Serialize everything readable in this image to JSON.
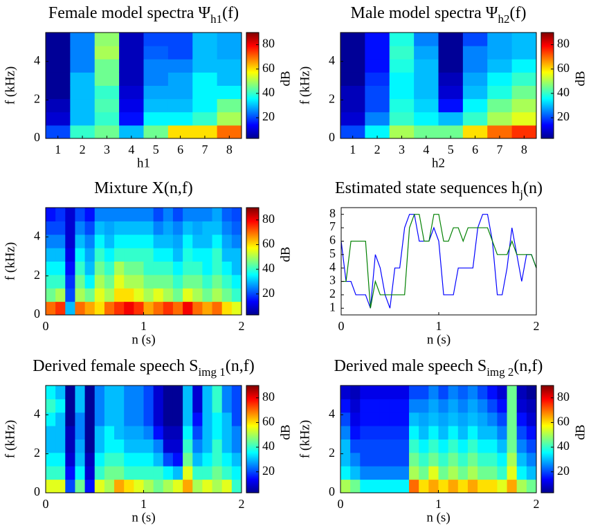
{
  "chart_data": [
    {
      "type": "heatmap",
      "title": [
        "Female model spectra Ψ",
        "h1",
        "(f)"
      ],
      "xlabel": "h1",
      "ylabel": "f (kHz)",
      "xlim": [
        0.5,
        8.5
      ],
      "xticks": [
        1,
        2,
        3,
        4,
        5,
        6,
        7,
        8
      ],
      "ylim": [
        0,
        5.5
      ],
      "yticks": [
        0,
        2,
        4
      ],
      "colorbar": {
        "label": "dB",
        "lim": [
          3,
          90
        ],
        "ticks": [
          20,
          40,
          60,
          80
        ]
      },
      "values": [
        [
          20,
          10,
          8,
          5,
          5,
          5,
          5,
          5
        ],
        [
          40,
          30,
          30,
          30,
          30,
          25,
          25,
          25
        ],
        [
          45,
          40,
          42,
          40,
          45,
          45,
          50,
          48
        ],
        [
          30,
          15,
          12,
          10,
          8,
          8,
          8,
          8
        ],
        [
          45,
          35,
          30,
          28,
          25,
          25,
          22,
          20
        ],
        [
          60,
          35,
          30,
          28,
          28,
          25,
          20,
          20
        ],
        [
          60,
          40,
          35,
          35,
          35,
          30,
          30,
          30
        ],
        [
          70,
          50,
          45,
          35,
          30,
          30,
          28,
          28
        ]
      ]
    },
    {
      "type": "heatmap",
      "title": [
        "Male model spectra Ψ",
        "h2",
        "(f)"
      ],
      "xlabel": "h2",
      "ylabel": "f (kHz)",
      "xlim": [
        0.5,
        8.5
      ],
      "xticks": [
        1,
        2,
        3,
        4,
        5,
        6,
        7,
        8
      ],
      "ylim": [
        0,
        5.5
      ],
      "yticks": [
        0,
        2,
        4
      ],
      "colorbar": {
        "label": "dB",
        "lim": [
          3,
          90
        ],
        "ticks": [
          20,
          40,
          60,
          80
        ]
      },
      "values": [
        [
          20,
          10,
          8,
          8,
          5,
          5,
          5,
          5
        ],
        [
          35,
          25,
          20,
          20,
          18,
          15,
          15,
          15
        ],
        [
          50,
          40,
          38,
          35,
          35,
          38,
          40,
          38
        ],
        [
          45,
          35,
          32,
          30,
          30,
          30,
          28,
          25
        ],
        [
          45,
          30,
          15,
          10,
          8,
          5,
          5,
          5
        ],
        [
          60,
          40,
          35,
          30,
          28,
          25,
          25,
          20
        ],
        [
          70,
          50,
          45,
          38,
          35,
          30,
          28,
          28
        ],
        [
          75,
          55,
          50,
          45,
          40,
          35,
          30,
          30
        ]
      ]
    },
    {
      "type": "heatmap",
      "title": [
        "Mixture X(n,f)",
        "",
        ""
      ],
      "xlabel": "n (s)",
      "ylabel": "f (kHz)",
      "xlim": [
        0,
        2
      ],
      "xticks": [
        0,
        1,
        2
      ],
      "ylim": [
        0,
        5.5
      ],
      "yticks": [
        0,
        2,
        4
      ],
      "colorbar": {
        "label": "dB",
        "lim": [
          3,
          90
        ],
        "ticks": [
          20,
          40,
          60,
          80
        ]
      },
      "values": [
        [
          70,
          45,
          40,
          35,
          30,
          25,
          20,
          15
        ],
        [
          75,
          50,
          40,
          35,
          30,
          25,
          20,
          18
        ],
        [
          30,
          20,
          18,
          15,
          12,
          10,
          10,
          10
        ],
        [
          70,
          50,
          45,
          40,
          35,
          30,
          25,
          20
        ],
        [
          65,
          45,
          35,
          30,
          28,
          25,
          20,
          15
        ],
        [
          60,
          55,
          50,
          45,
          40,
          35,
          30,
          25
        ],
        [
          70,
          50,
          45,
          40,
          35,
          30,
          28,
          25
        ],
        [
          75,
          60,
          55,
          50,
          40,
          35,
          30,
          25
        ],
        [
          80,
          60,
          50,
          45,
          40,
          35,
          30,
          25
        ],
        [
          75,
          55,
          50,
          45,
          40,
          35,
          30,
          25
        ],
        [
          65,
          50,
          45,
          40,
          40,
          35,
          30,
          25
        ],
        [
          70,
          55,
          45,
          40,
          35,
          30,
          25,
          20
        ],
        [
          75,
          50,
          45,
          40,
          35,
          30,
          28,
          25
        ],
        [
          70,
          45,
          40,
          35,
          30,
          28,
          25,
          20
        ],
        [
          80,
          55,
          45,
          40,
          38,
          35,
          30,
          25
        ],
        [
          70,
          50,
          45,
          40,
          35,
          30,
          28,
          25
        ],
        [
          65,
          45,
          40,
          35,
          35,
          30,
          30,
          25
        ],
        [
          70,
          50,
          45,
          40,
          40,
          35,
          30,
          28
        ],
        [
          60,
          45,
          40,
          35,
          30,
          28,
          25,
          22
        ],
        [
          55,
          40,
          35,
          30,
          30,
          25,
          22,
          20
        ]
      ]
    },
    {
      "type": "line",
      "title": [
        "Estimated state sequences h",
        "j",
        "(n)"
      ],
      "xlabel": "n (s)",
      "xlim": [
        0,
        2
      ],
      "xticks": [
        0,
        1,
        2
      ],
      "ylim": [
        0.5,
        8.5
      ],
      "yticks": [
        1,
        2,
        3,
        4,
        5,
        6,
        7,
        8
      ],
      "x": [
        0,
        0.05,
        0.1,
        0.15,
        0.2,
        0.25,
        0.3,
        0.35,
        0.4,
        0.45,
        0.5,
        0.55,
        0.6,
        0.65,
        0.7,
        0.75,
        0.8,
        0.85,
        0.9,
        0.95,
        1,
        1.05,
        1.1,
        1.15,
        1.2,
        1.25,
        1.3,
        1.35,
        1.4,
        1.45,
        1.5,
        1.55,
        1.6,
        1.65,
        1.7,
        1.75,
        1.8,
        1.85,
        1.9,
        1.95,
        2
      ],
      "series": [
        {
          "color": "#0000ff",
          "values": [
            6,
            3,
            3,
            2,
            2,
            2,
            1,
            5,
            4,
            2,
            1,
            4,
            4,
            7,
            8,
            8,
            6,
            6,
            6,
            7,
            6,
            2,
            2,
            2,
            4,
            4,
            4,
            4,
            7,
            8,
            8,
            6,
            2,
            2,
            4,
            7,
            5,
            3,
            5,
            5,
            4
          ]
        },
        {
          "color": "#008000",
          "values": [
            3,
            3,
            6,
            6,
            6,
            6,
            1,
            3,
            2,
            2,
            2,
            2,
            2,
            2,
            7,
            8,
            8,
            6,
            6,
            8,
            8,
            6,
            6,
            7,
            7,
            6,
            7,
            7,
            7,
            7,
            7,
            6,
            5,
            5,
            5,
            6,
            5,
            5,
            5,
            5,
            4
          ]
        }
      ]
    },
    {
      "type": "heatmap",
      "title": [
        "Derived female speech S",
        "img 1",
        "(n,f)"
      ],
      "xlabel": "n (s)",
      "ylabel": "f (kHz)",
      "xlim": [
        0,
        2
      ],
      "xticks": [
        0,
        1,
        2
      ],
      "ylim": [
        0,
        5.5
      ],
      "yticks": [
        0,
        2,
        4
      ],
      "colorbar": {
        "label": "dB",
        "lim": [
          3,
          90
        ],
        "ticks": [
          20,
          40,
          60,
          80
        ]
      },
      "values": [
        [
          55,
          40,
          35,
          30,
          30,
          35,
          40,
          35
        ],
        [
          55,
          40,
          35,
          30,
          30,
          30,
          35,
          30
        ],
        [
          20,
          15,
          10,
          8,
          8,
          5,
          5,
          5
        ],
        [
          45,
          35,
          30,
          28,
          25,
          25,
          30,
          30
        ],
        [
          15,
          10,
          8,
          5,
          5,
          5,
          5,
          5
        ],
        [
          55,
          40,
          35,
          30,
          30,
          25,
          25,
          25
        ],
        [
          50,
          45,
          40,
          35,
          35,
          30,
          30,
          30
        ],
        [
          65,
          45,
          40,
          35,
          30,
          30,
          30,
          30
        ],
        [
          60,
          40,
          35,
          30,
          28,
          25,
          25,
          25
        ],
        [
          55,
          40,
          35,
          30,
          28,
          25,
          25,
          25
        ],
        [
          50,
          40,
          35,
          30,
          25,
          20,
          20,
          20
        ],
        [
          45,
          40,
          30,
          25,
          15,
          10,
          10,
          10
        ],
        [
          50,
          35,
          20,
          10,
          8,
          5,
          5,
          5
        ],
        [
          55,
          30,
          15,
          10,
          8,
          5,
          5,
          5
        ],
        [
          65,
          55,
          45,
          40,
          35,
          30,
          30,
          30
        ],
        [
          50,
          40,
          30,
          25,
          20,
          15,
          10,
          10
        ],
        [
          55,
          40,
          35,
          30,
          30,
          30,
          30,
          30
        ],
        [
          50,
          45,
          40,
          40,
          35,
          35,
          40,
          40
        ],
        [
          55,
          40,
          35,
          30,
          30,
          30,
          25,
          25
        ],
        [
          40,
          35,
          30,
          25,
          25,
          20,
          20,
          20
        ]
      ]
    },
    {
      "type": "heatmap",
      "title": [
        "Derived male speech S",
        "img 2",
        "(n,f)"
      ],
      "xlabel": "n (s)",
      "ylabel": "f (kHz)",
      "xlim": [
        0,
        2
      ],
      "xticks": [
        0,
        1,
        2
      ],
      "ylim": [
        0,
        5.5
      ],
      "yticks": [
        0,
        2,
        4
      ],
      "colorbar": {
        "label": "dB",
        "lim": [
          3,
          90
        ],
        "ticks": [
          20,
          40,
          60,
          80
        ]
      },
      "values": [
        [
          50,
          35,
          30,
          30,
          25,
          20,
          15,
          10
        ],
        [
          45,
          30,
          25,
          20,
          15,
          12,
          10,
          8
        ],
        [
          35,
          25,
          20,
          20,
          18,
          15,
          15,
          12
        ],
        [
          35,
          25,
          20,
          20,
          18,
          15,
          15,
          12
        ],
        [
          35,
          25,
          20,
          20,
          18,
          15,
          15,
          12
        ],
        [
          35,
          25,
          20,
          20,
          18,
          15,
          15,
          12
        ],
        [
          35,
          25,
          20,
          20,
          18,
          15,
          15,
          12
        ],
        [
          70,
          50,
          45,
          40,
          35,
          30,
          25,
          20
        ],
        [
          60,
          45,
          40,
          35,
          30,
          28,
          25,
          20
        ],
        [
          65,
          55,
          45,
          40,
          35,
          30,
          28,
          25
        ],
        [
          60,
          45,
          40,
          35,
          30,
          28,
          25,
          20
        ],
        [
          65,
          50,
          45,
          40,
          35,
          30,
          28,
          25
        ],
        [
          60,
          45,
          40,
          35,
          30,
          28,
          25,
          22
        ],
        [
          65,
          50,
          45,
          40,
          35,
          30,
          28,
          25
        ],
        [
          60,
          45,
          40,
          35,
          30,
          28,
          25,
          20
        ],
        [
          60,
          45,
          40,
          35,
          30,
          25,
          20,
          15
        ],
        [
          55,
          40,
          35,
          30,
          25,
          20,
          15,
          10
        ],
        [
          65,
          55,
          50,
          45,
          45,
          45,
          45,
          45
        ],
        [
          50,
          35,
          30,
          25,
          20,
          15,
          10,
          8
        ],
        [
          45,
          30,
          25,
          20,
          15,
          10,
          8,
          5
        ]
      ]
    }
  ]
}
